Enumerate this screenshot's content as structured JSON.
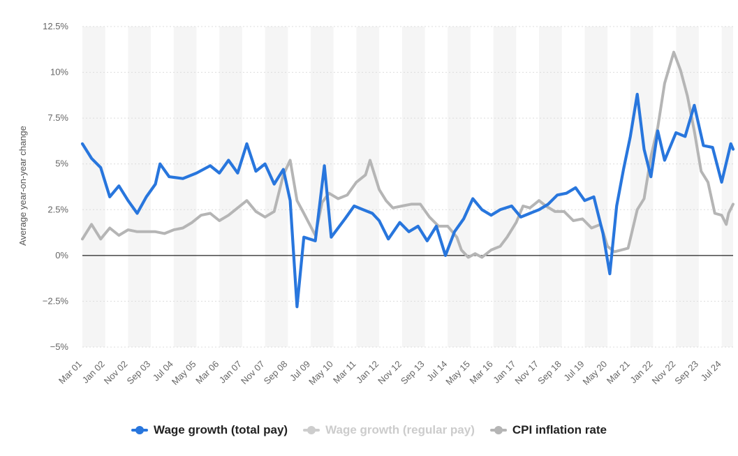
{
  "chart_data": {
    "type": "line",
    "title": "",
    "xlabel": "",
    "ylabel": "Average year-on-year change",
    "ylim": [
      -5,
      12.5
    ],
    "y_ticks": [
      -5,
      -2.5,
      0,
      2.5,
      5,
      7.5,
      10,
      12.5
    ],
    "y_tick_labels": [
      "−5%",
      "−2.5%",
      "0%",
      "2.5%",
      "5%",
      "7.5%",
      "10%",
      "12.5%"
    ],
    "x_start": "Mar 01",
    "x_end": "Dec 24",
    "x_tick_labels": [
      "Mar 01",
      "Jan 02",
      "Nov 02",
      "Sep 03",
      "Jul 04",
      "May 05",
      "Mar 06",
      "Jan 07",
      "Nov 07",
      "Sep 08",
      "Jul 09",
      "May 10",
      "Mar 11",
      "Jan 12",
      "Nov 12",
      "Sep 13",
      "Jul 14",
      "May 15",
      "Mar 16",
      "Jan 17",
      "Nov 17",
      "Sep 18",
      "Jul 19",
      "May 20",
      "Mar 21",
      "Jan 22",
      "Nov 22",
      "Sep 23",
      "Jul 24"
    ],
    "grid": "alternating vertical bands",
    "legend_position": "bottom",
    "series": [
      {
        "name": "Wage growth (total pay)",
        "color": "#2876dd",
        "points": [
          [
            "Mar 01",
            6.1
          ],
          [
            "Jul 01",
            5.3
          ],
          [
            "Nov 01",
            4.8
          ],
          [
            "Mar 02",
            3.2
          ],
          [
            "Jul 02",
            3.8
          ],
          [
            "Nov 02",
            3.0
          ],
          [
            "Mar 03",
            2.3
          ],
          [
            "Jul 03",
            3.2
          ],
          [
            "Nov 03",
            3.9
          ],
          [
            "Jan 04",
            5.0
          ],
          [
            "May 04",
            4.3
          ],
          [
            "Nov 04",
            4.2
          ],
          [
            "May 05",
            4.5
          ],
          [
            "Nov 05",
            4.9
          ],
          [
            "Mar 06",
            4.5
          ],
          [
            "Jul 06",
            5.2
          ],
          [
            "Nov 06",
            4.5
          ],
          [
            "Mar 07",
            6.1
          ],
          [
            "Jul 07",
            4.6
          ],
          [
            "Nov 07",
            5.0
          ],
          [
            "Mar 08",
            3.9
          ],
          [
            "Jul 08",
            4.7
          ],
          [
            "Oct 08",
            3.0
          ],
          [
            "Jan 09",
            -2.8
          ],
          [
            "Apr 09",
            1.0
          ],
          [
            "Sep 09",
            0.8
          ],
          [
            "Jan 10",
            4.9
          ],
          [
            "Apr 10",
            1.0
          ],
          [
            "Oct 10",
            2.0
          ],
          [
            "Feb 11",
            2.7
          ],
          [
            "Jun 11",
            2.5
          ],
          [
            "Oct 11",
            2.3
          ],
          [
            "Jan 12",
            1.9
          ],
          [
            "May 12",
            0.9
          ],
          [
            "Oct 12",
            1.8
          ],
          [
            "Feb 13",
            1.3
          ],
          [
            "Jun 13",
            1.6
          ],
          [
            "Oct 13",
            0.8
          ],
          [
            "Feb 14",
            1.6
          ],
          [
            "Jun 14",
            0.0
          ],
          [
            "Oct 14",
            1.3
          ],
          [
            "Feb 15",
            2.0
          ],
          [
            "Jun 15",
            3.1
          ],
          [
            "Oct 15",
            2.5
          ],
          [
            "Feb 16",
            2.2
          ],
          [
            "Jun 16",
            2.5
          ],
          [
            "Nov 16",
            2.7
          ],
          [
            "Mar 17",
            2.1
          ],
          [
            "Jul 17",
            2.3
          ],
          [
            "Nov 17",
            2.5
          ],
          [
            "Mar 18",
            2.8
          ],
          [
            "Jul 18",
            3.3
          ],
          [
            "Nov 18",
            3.4
          ],
          [
            "Mar 19",
            3.7
          ],
          [
            "Jul 19",
            3.0
          ],
          [
            "Nov 19",
            3.2
          ],
          [
            "Mar 20",
            1.2
          ],
          [
            "Jun 20",
            -1.0
          ],
          [
            "Sep 20",
            2.7
          ],
          [
            "Dec 20",
            4.7
          ],
          [
            "Mar 21",
            6.5
          ],
          [
            "Jun 21",
            8.8
          ],
          [
            "Sep 21",
            5.8
          ],
          [
            "Dec 21",
            4.3
          ],
          [
            "Mar 22",
            6.8
          ],
          [
            "Jun 22",
            5.2
          ],
          [
            "Nov 22",
            6.7
          ],
          [
            "Mar 23",
            6.5
          ],
          [
            "Jul 23",
            8.2
          ],
          [
            "Nov 23",
            6.0
          ],
          [
            "Mar 24",
            5.9
          ],
          [
            "Jul 24",
            4.0
          ],
          [
            "Nov 24",
            6.1
          ],
          [
            "Dec 24",
            5.8
          ]
        ]
      },
      {
        "name": "Wage growth (regular pay)",
        "color": "#cdcdcd",
        "points": [],
        "disabled": true
      },
      {
        "name": "CPI inflation rate",
        "color": "#b5b5b5",
        "points": [
          [
            "Mar 01",
            0.9
          ],
          [
            "Jul 01",
            1.7
          ],
          [
            "Nov 01",
            0.9
          ],
          [
            "Mar 02",
            1.5
          ],
          [
            "Jul 02",
            1.1
          ],
          [
            "Nov 02",
            1.4
          ],
          [
            "Mar 03",
            1.3
          ],
          [
            "Jul 03",
            1.3
          ],
          [
            "Nov 03",
            1.3
          ],
          [
            "Mar 04",
            1.2
          ],
          [
            "Jul 04",
            1.4
          ],
          [
            "Nov 04",
            1.5
          ],
          [
            "Mar 05",
            1.8
          ],
          [
            "Jul 05",
            2.2
          ],
          [
            "Nov 05",
            2.3
          ],
          [
            "Mar 06",
            1.9
          ],
          [
            "Jul 06",
            2.2
          ],
          [
            "Nov 06",
            2.6
          ],
          [
            "Mar 07",
            3.0
          ],
          [
            "Jul 07",
            2.4
          ],
          [
            "Nov 07",
            2.1
          ],
          [
            "Mar 08",
            2.4
          ],
          [
            "Jul 08",
            4.4
          ],
          [
            "Oct 08",
            5.2
          ],
          [
            "Jan 09",
            3.0
          ],
          [
            "Apr 09",
            2.3
          ],
          [
            "Sep 09",
            1.1
          ],
          [
            "Dec 09",
            2.9
          ],
          [
            "Mar 10",
            3.4
          ],
          [
            "Jul 10",
            3.1
          ],
          [
            "Nov 10",
            3.3
          ],
          [
            "Mar 11",
            4.0
          ],
          [
            "Jul 11",
            4.4
          ],
          [
            "Sep 11",
            5.2
          ],
          [
            "Jan 12",
            3.6
          ],
          [
            "Apr 12",
            3.0
          ],
          [
            "Jul 12",
            2.6
          ],
          [
            "Nov 12",
            2.7
          ],
          [
            "Mar 13",
            2.8
          ],
          [
            "Jul 13",
            2.8
          ],
          [
            "Nov 13",
            2.1
          ],
          [
            "Mar 14",
            1.6
          ],
          [
            "Jul 14",
            1.6
          ],
          [
            "Nov 14",
            1.0
          ],
          [
            "Jan 15",
            0.3
          ],
          [
            "Apr 15",
            -0.1
          ],
          [
            "Jul 15",
            0.1
          ],
          [
            "Oct 15",
            -0.1
          ],
          [
            "Feb 16",
            0.3
          ],
          [
            "Jun 16",
            0.5
          ],
          [
            "Sep 16",
            1.0
          ],
          [
            "Jan 17",
            1.8
          ],
          [
            "Apr 17",
            2.7
          ],
          [
            "Jul 17",
            2.6
          ],
          [
            "Nov 17",
            3.0
          ],
          [
            "Feb 18",
            2.7
          ],
          [
            "Jun 18",
            2.4
          ],
          [
            "Oct 18",
            2.4
          ],
          [
            "Feb 19",
            1.9
          ],
          [
            "Jun 19",
            2.0
          ],
          [
            "Oct 19",
            1.5
          ],
          [
            "Feb 20",
            1.7
          ],
          [
            "May 20",
            0.5
          ],
          [
            "Aug 20",
            0.2
          ],
          [
            "Nov 20",
            0.3
          ],
          [
            "Feb 21",
            0.4
          ],
          [
            "Jun 21",
            2.5
          ],
          [
            "Sep 21",
            3.1
          ],
          [
            "Dec 21",
            5.4
          ],
          [
            "Mar 22",
            7.0
          ],
          [
            "Jun 22",
            9.4
          ],
          [
            "Oct 22",
            11.1
          ],
          [
            "Jan 23",
            10.1
          ],
          [
            "Apr 23",
            8.7
          ],
          [
            "Jul 23",
            6.8
          ],
          [
            "Oct 23",
            4.6
          ],
          [
            "Jan 24",
            4.0
          ],
          [
            "Apr 24",
            2.3
          ],
          [
            "Jul 24",
            2.2
          ],
          [
            "Sep 24",
            1.7
          ],
          [
            "Oct 24",
            2.3
          ],
          [
            "Dec 24",
            2.8
          ]
        ]
      }
    ]
  },
  "legend": {
    "items": [
      {
        "label": "Wage growth (total pay)",
        "color": "#2876dd",
        "text_color": "#222222"
      },
      {
        "label": "Wage growth (regular pay)",
        "color": "#cdcdcd",
        "text_color": "#cccccc"
      },
      {
        "label": "CPI inflation rate",
        "color": "#b5b5b5",
        "text_color": "#222222"
      }
    ]
  }
}
